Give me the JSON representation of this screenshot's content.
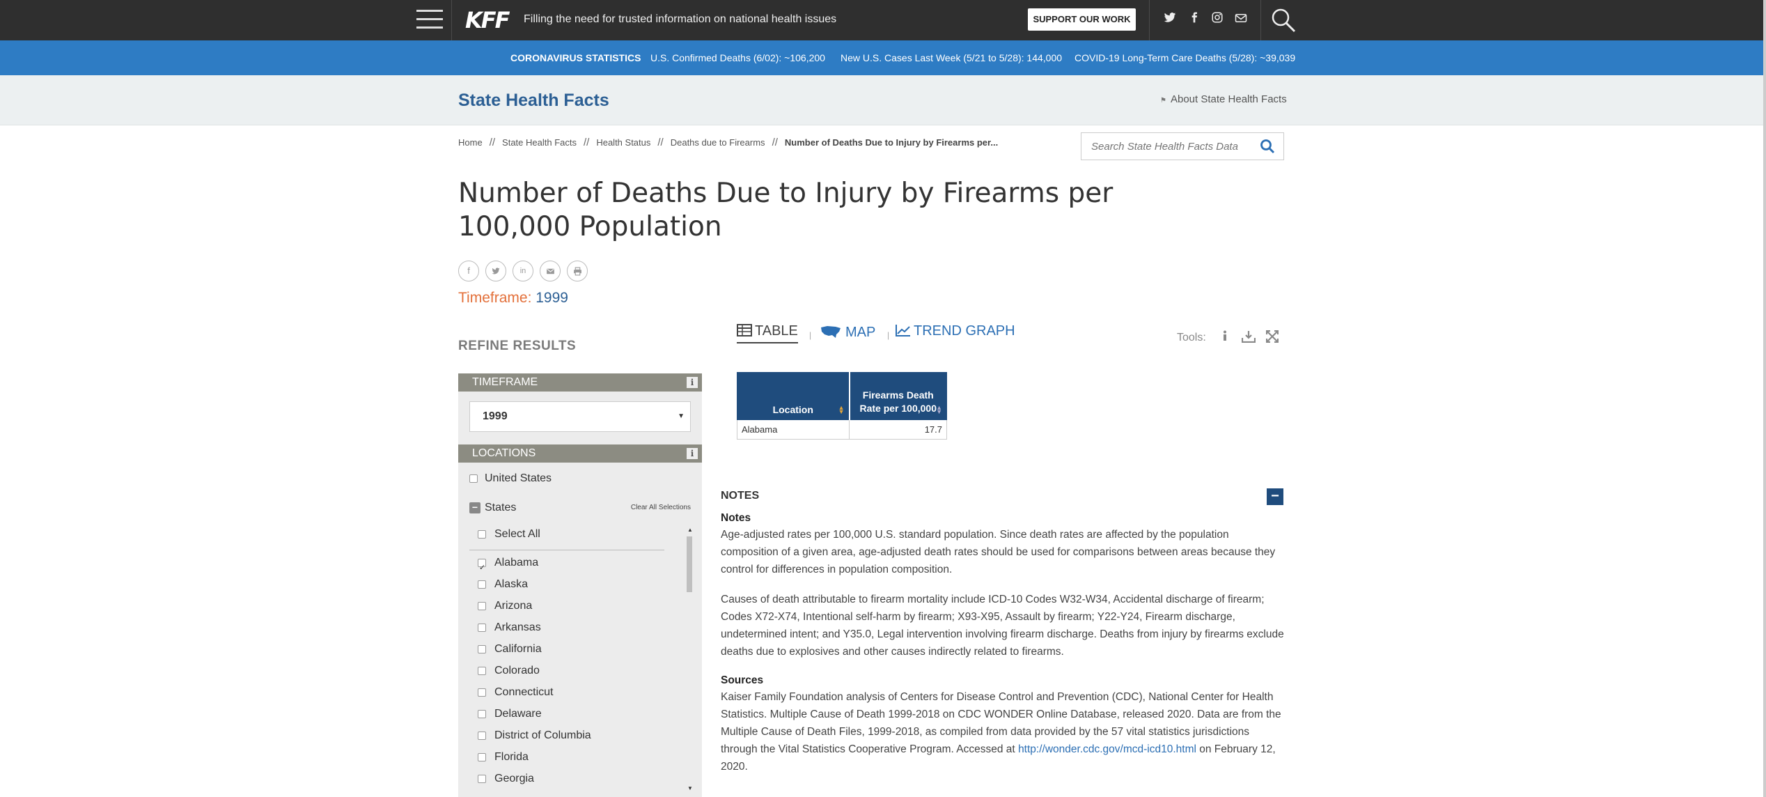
{
  "topnav": {
    "logo": "KFF",
    "tagline": "Filling the need for trusted information on national health issues",
    "support_label": "SUPPORT OUR WORK",
    "social_icons": [
      "twitter-icon",
      "facebook-icon",
      "instagram-icon",
      "email-icon"
    ]
  },
  "covid": {
    "label": "CORONAVIRUS STATISTICS",
    "stats": [
      "U.S. Confirmed Deaths (6/02): ~106,200",
      "New U.S. Cases Last Week (5/21 to 5/28): 144,000",
      "COVID-19 Long-Term Care Deaths (5/28): ~39,039"
    ]
  },
  "shf": {
    "title": "State Health Facts",
    "about": "About State Health Facts"
  },
  "breadcrumb": {
    "items": [
      "Home",
      "State Health Facts",
      "Health Status",
      "Deaths due to Firearms"
    ],
    "current": "Number of Deaths Due to Injury by Firearms per..."
  },
  "search": {
    "placeholder": "Search State Health Facts Data"
  },
  "page": {
    "title": "Number of Deaths Due to Injury by Firearms per 100,000 Population",
    "timeframe_label": "Timeframe:",
    "timeframe_value": "1999"
  },
  "refine": {
    "title": "REFINE RESULTS",
    "timeframe_head": "TIMEFRAME",
    "timeframe_selected": "1999",
    "locations_head": "LOCATIONS",
    "us_label": "United States",
    "states_label": "States",
    "clear_all": "Clear All Selections",
    "select_all": "Select All",
    "states": [
      {
        "name": "Alabama",
        "checked": true
      },
      {
        "name": "Alaska",
        "checked": false
      },
      {
        "name": "Arizona",
        "checked": false
      },
      {
        "name": "Arkansas",
        "checked": false
      },
      {
        "name": "California",
        "checked": false
      },
      {
        "name": "Colorado",
        "checked": false
      },
      {
        "name": "Connecticut",
        "checked": false
      },
      {
        "name": "Delaware",
        "checked": false
      },
      {
        "name": "District of Columbia",
        "checked": false
      },
      {
        "name": "Florida",
        "checked": false
      },
      {
        "name": "Georgia",
        "checked": false
      }
    ]
  },
  "tabs": {
    "table": "TABLE",
    "map": "MAP",
    "trend": "TREND GRAPH",
    "tools_label": "Tools:"
  },
  "table": {
    "col_location": "Location",
    "col_value": "Firearms Death Rate per 100,000",
    "rows": [
      {
        "location": "Alabama",
        "value": "17.7"
      }
    ]
  },
  "notes": {
    "section_title": "NOTES",
    "notes_head": "Notes",
    "p1": "Age-adjusted rates per 100,000 U.S. standard population. Since death rates are affected by the population composition of a given area, age-adjusted death rates should be used for comparisons between areas because they control for differences in population composition.",
    "p2": "Causes of death attributable to firearm mortality include ICD-10 Codes W32-W34, Accidental discharge of firearm; Codes X72-X74, Intentional self-harm by firearm; X93-X95, Assault by firearm; Y22-Y24, Firearm discharge, undetermined intent; and Y35.0, Legal intervention involving firearm discharge. Deaths from injury by firearms exclude deaths due to explosives and other causes indirectly related to firearms.",
    "sources_head": "Sources",
    "sources_text": "Kaiser Family Foundation analysis of Centers for Disease Control and Prevention (CDC), National Center for Health Statistics. Multiple Cause of Death 1999-2018 on CDC WONDER Online Database, released 2020. Data are from the Multiple Cause of Death Files, 1999-2018, as compiled from data provided by the 57 vital statistics jurisdictions through the Vital Statistics Cooperative Program. Accessed at",
    "sources_link": "http://wonder.cdc.gov/mcd-icd10.html",
    "sources_tail": "on February 12, 2020."
  }
}
